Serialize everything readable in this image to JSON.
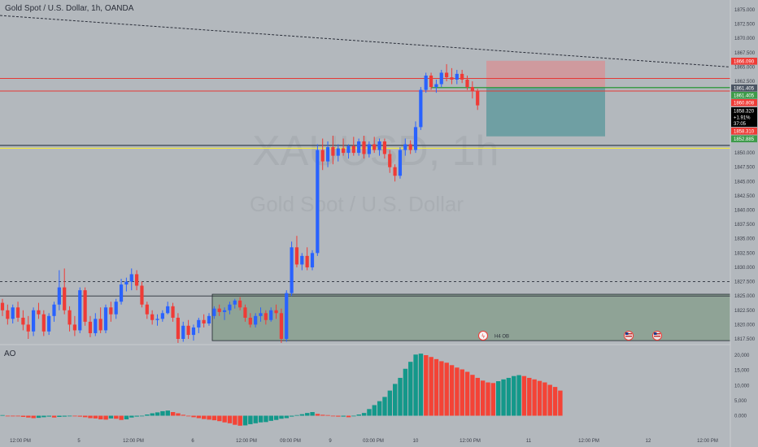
{
  "header": {
    "title": "Gold Spot / U.S. Dollar, 1h, OANDA"
  },
  "watermark": {
    "symbol": "XAUUSD, 1h",
    "name": "Gold Spot / U.S. Dollar"
  },
  "indicator": {
    "name": "AO"
  },
  "event_label": "H4 OB",
  "colors": {
    "up": "#2962ff",
    "down": "#ef3b36",
    "ao_up": "#13988a",
    "ao_down": "#f44336",
    "resistance": "#e53935",
    "support_yellow": "#f3e83b",
    "support_dark": "#4b5563",
    "entry_green": "#3e9b4a",
    "target_zone": "#6f9fa3",
    "stop_zone": "#cf9a9e",
    "ob_zone": "#8fa396"
  },
  "chart_data": {
    "type": "candlestick",
    "symbol": "XAUUSD",
    "timeframe": "1h",
    "ylim": [
      1816.5,
      1876.5
    ],
    "y_ticks": [
      "1875.000",
      "1872.500",
      "1870.000",
      "1867.500",
      "1865.000",
      "1862.500",
      "1860.000",
      "1857.500",
      "1855.000",
      "1852.500",
      "1850.000",
      "1847.500",
      "1845.000",
      "1842.500",
      "1840.000",
      "1837.500",
      "1835.000",
      "1832.500",
      "1830.000",
      "1827.500",
      "1825.000",
      "1822.500",
      "1820.000",
      "1817.500"
    ],
    "x_ticks": [
      "12:00 PM",
      "5",
      "12:00 PM",
      "6",
      "12:00 PM",
      "09:00 PM",
      "9",
      "03:00 PM",
      "10",
      "12:00 PM",
      "11",
      "12:00 PM",
      "12",
      "12:00 PM"
    ],
    "price_labels": [
      {
        "value": "1866.090",
        "color": "#ef3b36"
      },
      {
        "value": "1861.405",
        "color": "#4b5563"
      },
      {
        "value": "1861.405",
        "color": "#3e9b4a"
      },
      {
        "value": "1860.808",
        "color": "#ef3b36"
      },
      {
        "value": "1858.320",
        "color": "#000000"
      },
      {
        "value": "+1.91%",
        "color": "#000000"
      },
      {
        "value": "37:05",
        "color": "#000000"
      },
      {
        "value": "1858.310",
        "color": "#ef3b36"
      },
      {
        "value": "1852.885",
        "color": "#3e9b4a"
      }
    ],
    "levels": {
      "resistance_upper": 1863.0,
      "resistance_lower": 1860.8,
      "entry": 1861.4,
      "support_dark": 1851.3,
      "support_yellow": 1850.8,
      "dashed_mid": 1827.5,
      "trendline_start": 1874.0,
      "trendline_end": 1865.0
    },
    "position": {
      "stop": 1866.09,
      "entry": 1861.405,
      "target": 1852.885
    },
    "order_block": {
      "top": 1825.3,
      "bottom": 1817.2
    },
    "candles": [
      {
        "o": 1823.8,
        "h": 1824.5,
        "l": 1821.5,
        "c": 1822.5
      },
      {
        "o": 1822.5,
        "h": 1823.5,
        "l": 1820.0,
        "c": 1821.0
      },
      {
        "o": 1821.0,
        "h": 1823.5,
        "l": 1820.2,
        "c": 1823.0
      },
      {
        "o": 1823.0,
        "h": 1824.0,
        "l": 1820.5,
        "c": 1821.2
      },
      {
        "o": 1821.2,
        "h": 1822.5,
        "l": 1819.0,
        "c": 1820.0
      },
      {
        "o": 1820.0,
        "h": 1821.5,
        "l": 1817.5,
        "c": 1818.8
      },
      {
        "o": 1818.8,
        "h": 1823.0,
        "l": 1818.0,
        "c": 1822.5
      },
      {
        "o": 1822.5,
        "h": 1823.8,
        "l": 1821.0,
        "c": 1821.8
      },
      {
        "o": 1821.8,
        "h": 1822.5,
        "l": 1818.0,
        "c": 1818.8
      },
      {
        "o": 1818.8,
        "h": 1822.0,
        "l": 1818.2,
        "c": 1821.5
      },
      {
        "o": 1821.5,
        "h": 1824.0,
        "l": 1820.5,
        "c": 1823.5
      },
      {
        "o": 1823.5,
        "h": 1829.5,
        "l": 1822.5,
        "c": 1826.5
      },
      {
        "o": 1826.5,
        "h": 1829.8,
        "l": 1821.8,
        "c": 1822.5
      },
      {
        "o": 1822.5,
        "h": 1823.2,
        "l": 1818.8,
        "c": 1820.0
      },
      {
        "o": 1820.0,
        "h": 1821.5,
        "l": 1818.0,
        "c": 1819.0
      },
      {
        "o": 1819.0,
        "h": 1826.5,
        "l": 1818.5,
        "c": 1826.0
      },
      {
        "o": 1826.0,
        "h": 1826.5,
        "l": 1819.8,
        "c": 1820.5
      },
      {
        "o": 1820.5,
        "h": 1821.5,
        "l": 1817.8,
        "c": 1818.5
      },
      {
        "o": 1818.5,
        "h": 1822.0,
        "l": 1818.0,
        "c": 1821.0
      },
      {
        "o": 1821.0,
        "h": 1823.0,
        "l": 1818.5,
        "c": 1819.0
      },
      {
        "o": 1819.0,
        "h": 1823.5,
        "l": 1818.5,
        "c": 1823.0
      },
      {
        "o": 1823.0,
        "h": 1824.0,
        "l": 1820.5,
        "c": 1821.8
      },
      {
        "o": 1821.8,
        "h": 1824.5,
        "l": 1821.0,
        "c": 1824.0
      },
      {
        "o": 1824.0,
        "h": 1828.0,
        "l": 1823.5,
        "c": 1827.0
      },
      {
        "o": 1827.0,
        "h": 1828.2,
        "l": 1825.8,
        "c": 1827.5
      },
      {
        "o": 1827.5,
        "h": 1829.8,
        "l": 1826.0,
        "c": 1828.8
      },
      {
        "o": 1828.8,
        "h": 1829.5,
        "l": 1826.0,
        "c": 1826.8
      },
      {
        "o": 1826.8,
        "h": 1827.5,
        "l": 1823.0,
        "c": 1823.5
      },
      {
        "o": 1823.5,
        "h": 1824.0,
        "l": 1821.0,
        "c": 1821.8
      },
      {
        "o": 1821.8,
        "h": 1822.5,
        "l": 1820.0,
        "c": 1820.8
      },
      {
        "o": 1820.8,
        "h": 1821.8,
        "l": 1819.8,
        "c": 1821.0
      },
      {
        "o": 1821.0,
        "h": 1822.5,
        "l": 1820.5,
        "c": 1822.0
      },
      {
        "o": 1822.0,
        "h": 1824.0,
        "l": 1821.8,
        "c": 1823.2
      },
      {
        "o": 1823.2,
        "h": 1823.8,
        "l": 1820.5,
        "c": 1821.2
      },
      {
        "o": 1821.2,
        "h": 1822.0,
        "l": 1816.8,
        "c": 1817.5
      },
      {
        "o": 1817.5,
        "h": 1820.5,
        "l": 1817.0,
        "c": 1819.8
      },
      {
        "o": 1819.8,
        "h": 1820.8,
        "l": 1817.5,
        "c": 1818.2
      },
      {
        "o": 1818.2,
        "h": 1820.0,
        "l": 1817.2,
        "c": 1819.5
      },
      {
        "o": 1819.5,
        "h": 1821.2,
        "l": 1818.5,
        "c": 1820.8
      },
      {
        "o": 1820.8,
        "h": 1821.8,
        "l": 1819.5,
        "c": 1820.2
      },
      {
        "o": 1820.2,
        "h": 1822.0,
        "l": 1819.8,
        "c": 1821.5
      },
      {
        "o": 1821.5,
        "h": 1823.2,
        "l": 1821.0,
        "c": 1822.8
      },
      {
        "o": 1822.8,
        "h": 1823.5,
        "l": 1821.5,
        "c": 1822.2
      },
      {
        "o": 1822.2,
        "h": 1823.0,
        "l": 1820.8,
        "c": 1822.5
      },
      {
        "o": 1822.5,
        "h": 1824.0,
        "l": 1821.8,
        "c": 1823.5
      },
      {
        "o": 1823.5,
        "h": 1824.5,
        "l": 1822.8,
        "c": 1824.2
      },
      {
        "o": 1824.2,
        "h": 1824.8,
        "l": 1822.5,
        "c": 1823.0
      },
      {
        "o": 1823.0,
        "h": 1823.5,
        "l": 1820.5,
        "c": 1821.2
      },
      {
        "o": 1821.2,
        "h": 1822.0,
        "l": 1819.5,
        "c": 1820.0
      },
      {
        "o": 1820.0,
        "h": 1822.0,
        "l": 1819.5,
        "c": 1821.5
      },
      {
        "o": 1821.5,
        "h": 1823.0,
        "l": 1820.5,
        "c": 1822.0
      },
      {
        "o": 1822.0,
        "h": 1822.5,
        "l": 1820.0,
        "c": 1820.8
      },
      {
        "o": 1820.8,
        "h": 1823.0,
        "l": 1820.5,
        "c": 1822.5
      },
      {
        "o": 1822.5,
        "h": 1823.5,
        "l": 1821.0,
        "c": 1822.0
      },
      {
        "o": 1822.0,
        "h": 1822.8,
        "l": 1816.8,
        "c": 1817.5
      },
      {
        "o": 1817.5,
        "h": 1826.0,
        "l": 1817.0,
        "c": 1825.5
      },
      {
        "o": 1825.5,
        "h": 1834.5,
        "l": 1825.0,
        "c": 1833.5
      },
      {
        "o": 1833.5,
        "h": 1835.5,
        "l": 1830.0,
        "c": 1830.5
      },
      {
        "o": 1830.5,
        "h": 1832.5,
        "l": 1829.5,
        "c": 1832.0
      },
      {
        "o": 1832.0,
        "h": 1833.5,
        "l": 1829.5,
        "c": 1830.0
      },
      {
        "o": 1830.0,
        "h": 1833.0,
        "l": 1829.5,
        "c": 1832.5
      },
      {
        "o": 1832.5,
        "h": 1851.5,
        "l": 1832.0,
        "c": 1850.5
      },
      {
        "o": 1850.5,
        "h": 1852.5,
        "l": 1847.0,
        "c": 1848.5
      },
      {
        "o": 1848.5,
        "h": 1852.0,
        "l": 1847.5,
        "c": 1851.0
      },
      {
        "o": 1851.0,
        "h": 1853.0,
        "l": 1848.0,
        "c": 1849.5
      },
      {
        "o": 1849.5,
        "h": 1851.5,
        "l": 1848.5,
        "c": 1850.8
      },
      {
        "o": 1850.8,
        "h": 1852.5,
        "l": 1849.5,
        "c": 1850.0
      },
      {
        "o": 1850.0,
        "h": 1851.5,
        "l": 1849.0,
        "c": 1851.2
      },
      {
        "o": 1851.2,
        "h": 1852.8,
        "l": 1849.5,
        "c": 1850.0
      },
      {
        "o": 1850.0,
        "h": 1852.5,
        "l": 1849.5,
        "c": 1852.0
      },
      {
        "o": 1852.0,
        "h": 1853.0,
        "l": 1849.0,
        "c": 1849.8
      },
      {
        "o": 1849.8,
        "h": 1852.0,
        "l": 1849.2,
        "c": 1851.5
      },
      {
        "o": 1851.5,
        "h": 1852.8,
        "l": 1850.0,
        "c": 1850.5
      },
      {
        "o": 1850.5,
        "h": 1852.5,
        "l": 1849.5,
        "c": 1852.0
      },
      {
        "o": 1852.0,
        "h": 1852.5,
        "l": 1849.0,
        "c": 1849.8
      },
      {
        "o": 1849.8,
        "h": 1850.5,
        "l": 1846.5,
        "c": 1847.5
      },
      {
        "o": 1847.5,
        "h": 1848.0,
        "l": 1845.0,
        "c": 1846.0
      },
      {
        "o": 1846.0,
        "h": 1851.0,
        "l": 1845.5,
        "c": 1850.5
      },
      {
        "o": 1850.5,
        "h": 1852.5,
        "l": 1849.5,
        "c": 1851.5
      },
      {
        "o": 1851.5,
        "h": 1852.2,
        "l": 1849.8,
        "c": 1850.5
      },
      {
        "o": 1850.5,
        "h": 1855.5,
        "l": 1850.0,
        "c": 1854.5
      },
      {
        "o": 1854.5,
        "h": 1861.5,
        "l": 1854.0,
        "c": 1861.0
      },
      {
        "o": 1861.0,
        "h": 1864.0,
        "l": 1860.5,
        "c": 1863.5
      },
      {
        "o": 1863.5,
        "h": 1864.0,
        "l": 1861.0,
        "c": 1861.5
      },
      {
        "o": 1861.5,
        "h": 1862.8,
        "l": 1860.5,
        "c": 1862.0
      },
      {
        "o": 1862.0,
        "h": 1864.5,
        "l": 1861.5,
        "c": 1864.0
      },
      {
        "o": 1864.0,
        "h": 1865.5,
        "l": 1862.5,
        "c": 1863.2
      },
      {
        "o": 1863.2,
        "h": 1864.8,
        "l": 1862.0,
        "c": 1862.8
      },
      {
        "o": 1862.8,
        "h": 1864.5,
        "l": 1862.0,
        "c": 1863.8
      },
      {
        "o": 1863.8,
        "h": 1864.5,
        "l": 1862.2,
        "c": 1862.8
      },
      {
        "o": 1862.8,
        "h": 1863.5,
        "l": 1861.0,
        "c": 1861.5
      },
      {
        "o": 1861.5,
        "h": 1862.5,
        "l": 1859.5,
        "c": 1860.8
      },
      {
        "o": 1860.8,
        "h": 1861.2,
        "l": 1857.5,
        "c": 1858.3
      }
    ],
    "ao": {
      "ylim": [
        -4000,
        22000
      ],
      "y_ticks": [
        "20,000",
        "15,000",
        "10,000",
        "5,000",
        "0.000"
      ],
      "values": [
        200,
        0,
        -100,
        -200,
        -400,
        -600,
        -800,
        -700,
        -500,
        -300,
        -600,
        -400,
        -300,
        -100,
        -200,
        -300,
        -500,
        -800,
        -900,
        -1200,
        -1300,
        -900,
        -1000,
        -1400,
        -1200,
        -600,
        -300,
        -100,
        400,
        800,
        1100,
        1500,
        1700,
        1200,
        800,
        300,
        -200,
        -500,
        -800,
        -1100,
        -1300,
        -1500,
        -1800,
        -2200,
        -2500,
        -3000,
        -3300,
        -3200,
        -2800,
        -2500,
        -2200,
        -2100,
        -1700,
        -1400,
        -1000,
        -800,
        -300,
        200,
        500,
        900,
        1200,
        600,
        300,
        200,
        -100,
        -300,
        -300,
        -500,
        -100,
        400,
        900,
        2200,
        3500,
        4800,
        6200,
        8300,
        10500,
        12500,
        15500,
        17800,
        20200,
        20500,
        20000,
        19400,
        18700,
        18000,
        17500,
        16700,
        15900,
        15300,
        14500,
        13500,
        12500,
        11600,
        11000,
        10800,
        11400,
        12000,
        12500,
        13100,
        13400,
        13100,
        12500,
        12000,
        11500,
        11000,
        10200,
        9500,
        8300
      ]
    }
  }
}
